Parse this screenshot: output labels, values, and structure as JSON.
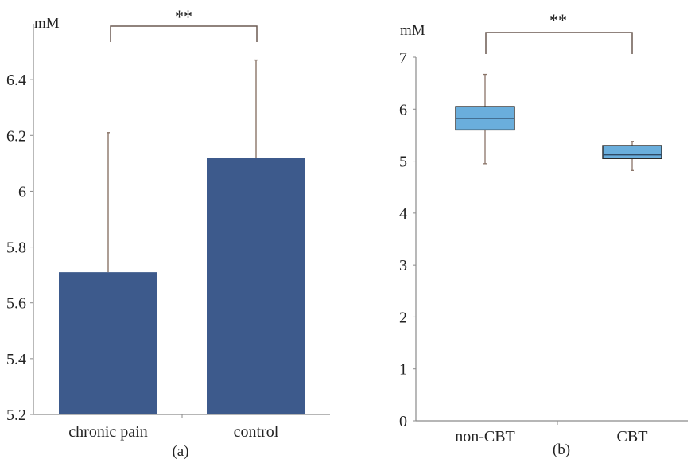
{
  "colors": {
    "bar_fill": "#3d5a8c",
    "box_fill": "#6aaedc",
    "axis": "#8a8a8a",
    "error_bar": "#8a7468",
    "bracket": "#6b5a52",
    "median": "#2e4a66"
  },
  "chart_data": [
    {
      "type": "bar",
      "panel_label": "(a)",
      "unit_label": "mM",
      "categories": [
        "chronic pain",
        "control"
      ],
      "values": [
        5.71,
        6.12
      ],
      "error_upper": [
        6.21,
        6.47
      ],
      "ylim": [
        5.2,
        6.6
      ],
      "yticks": [
        5.2,
        5.4,
        5.6,
        5.8,
        6,
        6.2,
        6.4
      ],
      "ytick_labels": [
        "5.2",
        "5.4",
        "5.6",
        "5.8",
        "6",
        "6.2",
        "6.4"
      ],
      "significance": "**",
      "grid": false
    },
    {
      "type": "box",
      "panel_label": "(b)",
      "unit_label": "mM",
      "categories": [
        "non-CBT",
        "CBT"
      ],
      "boxes": [
        {
          "whisker_low": 4.95,
          "q1": 5.6,
          "median": 5.82,
          "q3": 6.05,
          "whisker_high": 6.67
        },
        {
          "whisker_low": 4.82,
          "q1": 5.05,
          "median": 5.12,
          "q3": 5.3,
          "whisker_high": 5.38
        }
      ],
      "ylim": [
        0,
        7
      ],
      "yticks": [
        0,
        1,
        2,
        3,
        4,
        5,
        6,
        7
      ],
      "ytick_labels": [
        "0",
        "1",
        "2",
        "3",
        "4",
        "5",
        "6",
        "7"
      ],
      "significance": "**",
      "grid": false
    }
  ]
}
